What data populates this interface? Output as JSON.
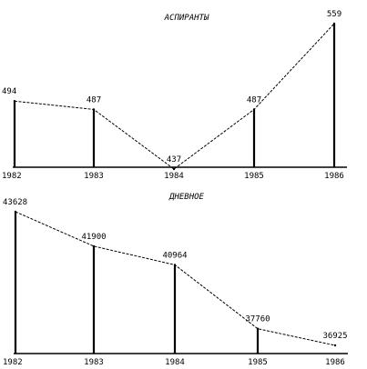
{
  "chart_data": [
    {
      "type": "line",
      "title": "АСПИРАНТЫ",
      "x": [
        "1982",
        "1983",
        "1984",
        "1985",
        "1986"
      ],
      "x_tick_labels": [
        "1982",
        "1983",
        "1984",
        "1985",
        "1986"
      ],
      "values": [
        494,
        487,
        437,
        487,
        559
      ],
      "data_labels": [
        "494",
        "487",
        "437",
        "487",
        "559"
      ],
      "drop_lines": "solid verticals at 1982, 1983, 1985, 1986; none at 1984",
      "line_style": "dashed",
      "grid": false,
      "legend": "none"
    },
    {
      "type": "line",
      "title": "ДНЕВНОЕ",
      "x": [
        "1982",
        "1983",
        "1984",
        "1985",
        "1986"
      ],
      "x_tick_labels": [
        "1982",
        "1983",
        "1984",
        "1985",
        "1986"
      ],
      "values": [
        43628,
        41900,
        40964,
        37760,
        36925
      ],
      "data_labels": [
        "43628",
        "41900",
        "40964",
        "37760",
        "36925"
      ],
      "drop_lines": "solid verticals at 1982, 1983, 1984, 1985; none at 1986",
      "line_style": "dashed",
      "grid": false,
      "legend": "none"
    }
  ],
  "colors": {
    "ink": "#000000",
    "background": "#ffffff"
  }
}
